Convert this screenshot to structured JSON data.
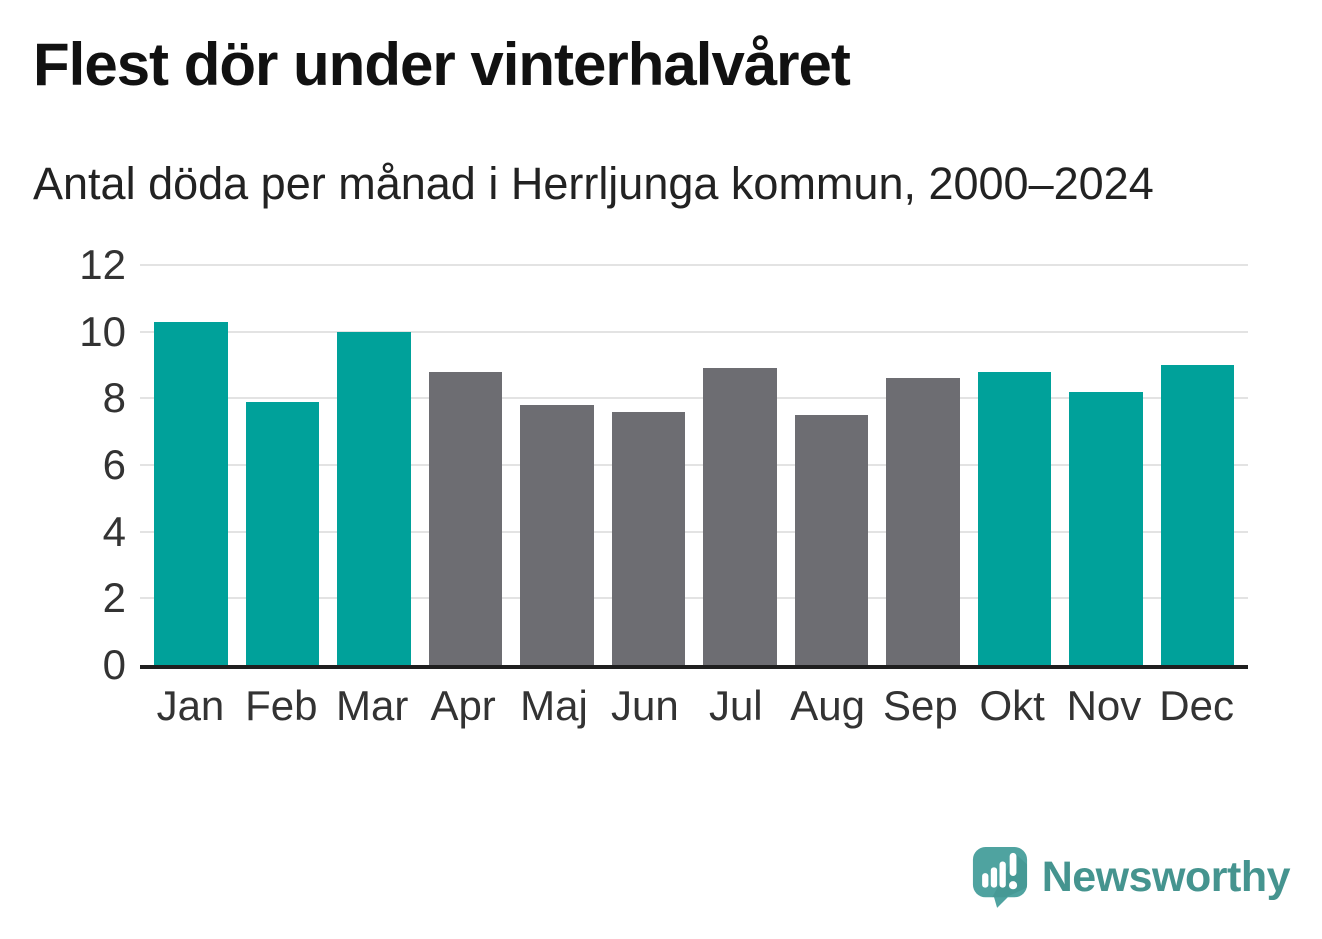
{
  "page": {
    "title": "Flest dör under vinterhalvåret",
    "subtitle": "Antal döda per månad i Herrljunga kommun, 2000–2024",
    "background_color": "#ffffff"
  },
  "chart_data": {
    "type": "bar",
    "title": "Flest dör under vinterhalvåret",
    "subtitle": "Antal döda per månad i Herrljunga kommun, 2000–2024",
    "categories": [
      "Jan",
      "Feb",
      "Mar",
      "Apr",
      "Maj",
      "Jun",
      "Jul",
      "Aug",
      "Sep",
      "Okt",
      "Nov",
      "Dec"
    ],
    "values": [
      10.3,
      7.9,
      10.0,
      8.8,
      7.8,
      7.6,
      8.9,
      7.5,
      8.6,
      8.8,
      8.2,
      9.0
    ],
    "bar_colors": [
      "#00a19a",
      "#00a19a",
      "#00a19a",
      "#6d6d72",
      "#6d6d72",
      "#6d6d72",
      "#6d6d72",
      "#6d6d72",
      "#6d6d72",
      "#00a19a",
      "#00a19a",
      "#00a19a"
    ],
    "highlight_color": "#00a19a",
    "muted_color": "#6d6d72",
    "highlighted_categories": [
      "Jan",
      "Feb",
      "Mar",
      "Okt",
      "Nov",
      "Dec"
    ],
    "xlabel": "",
    "ylabel": "",
    "ylim": [
      0,
      12
    ],
    "yticks": [
      0,
      2,
      4,
      6,
      8,
      10,
      12
    ],
    "grid": true,
    "gridline_color": "#e3e3e3",
    "axis_line_color": "#1f1f1f",
    "tick_label_color": "#333333",
    "legend": "none"
  },
  "branding": {
    "logo_text": "Newsworthy",
    "logo_text_color": "#45948f",
    "logo_icon": "speech-bubble-bar-chart-exclamation",
    "logo_icon_color": "#4fa3a0",
    "logo_icon_shadow_color": "#3f918d",
    "logo_icon_marks_color": "#ffffff"
  }
}
